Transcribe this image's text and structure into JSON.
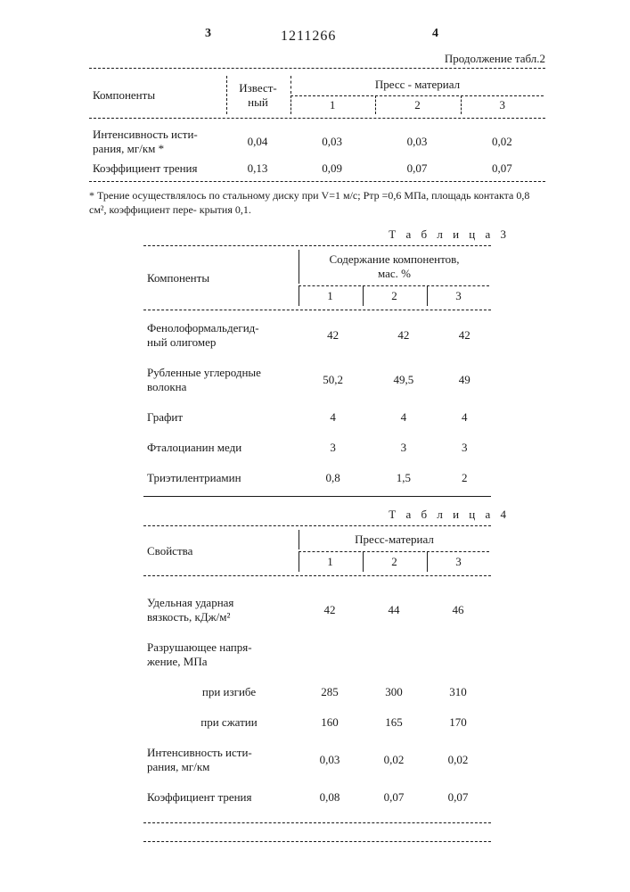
{
  "header": {
    "page_left": "3",
    "page_right": "4",
    "pub_num": "1211266",
    "continuation": "Продолжение табл.2"
  },
  "table2": {
    "col_components": "Компоненты",
    "col_known": "Извест-\nный",
    "col_press": "Пресс - материал",
    "sub": {
      "c1": "1",
      "c2": "2",
      "c3": "3"
    },
    "rows": [
      {
        "label": "Интенсивность исти-\nрания, мг/км *",
        "known": "0,04",
        "c1": "0,03",
        "c2": "0,03",
        "c3": "0,02"
      },
      {
        "label": "Коэффициент трения",
        "known": "0,13",
        "c1": "0,09",
        "c2": "0,07",
        "c3": "0,07"
      }
    ]
  },
  "footnote": "* Трение осуществлялось по стальному диску при V=1 м/с; Pтр =0,6 МПа, площадь контакта 0,8 см², коэффициент пере- крытия 0,1.",
  "table3": {
    "title": "Т а б л и ц а  3",
    "col_components": "Компоненты",
    "col_header": "Содержание компонентов,\nмас. %",
    "sub": {
      "c1": "1",
      "c2": "2",
      "c3": "3"
    },
    "rows": [
      {
        "label": "Фенолоформальдегид-\nный олигомер",
        "c1": "42",
        "c2": "42",
        "c3": "42"
      },
      {
        "label": "Рубленные углеродные\nволокна",
        "c1": "50,2",
        "c2": "49,5",
        "c3": "49"
      },
      {
        "label": "Графит",
        "c1": "4",
        "c2": "4",
        "c3": "4"
      },
      {
        "label": "Фталоцианин меди",
        "c1": "3",
        "c2": "3",
        "c3": "3"
      },
      {
        "label": "Триэтилентриамин",
        "c1": "0,8",
        "c2": "1,5",
        "c3": "2"
      }
    ]
  },
  "table4": {
    "title": "Т а б л и ц а  4",
    "col_props": "Свойства",
    "col_header": "Пресс-материал",
    "sub": {
      "c1": "1",
      "c2": "2",
      "c3": "3"
    },
    "rows": [
      {
        "label": "Удельная ударная\nвязкость, кДж/м²",
        "c1": "42",
        "c2": "44",
        "c3": "46",
        "indent": false
      },
      {
        "label": "Разрушающее напря-\nжение, МПа",
        "c1": "",
        "c2": "",
        "c3": "",
        "indent": false
      },
      {
        "label": "при изгибе",
        "c1": "285",
        "c2": "300",
        "c3": "310",
        "indent": true
      },
      {
        "label": "при сжатии",
        "c1": "160",
        "c2": "165",
        "c3": "170",
        "indent": true
      },
      {
        "label": "Интенсивность исти-\nрания, мг/км",
        "c1": "0,03",
        "c2": "0,02",
        "c3": "0,02",
        "indent": false
      },
      {
        "label": "Коэффициент трения",
        "c1": "0,08",
        "c2": "0,07",
        "c3": "0,07",
        "indent": false
      }
    ]
  }
}
